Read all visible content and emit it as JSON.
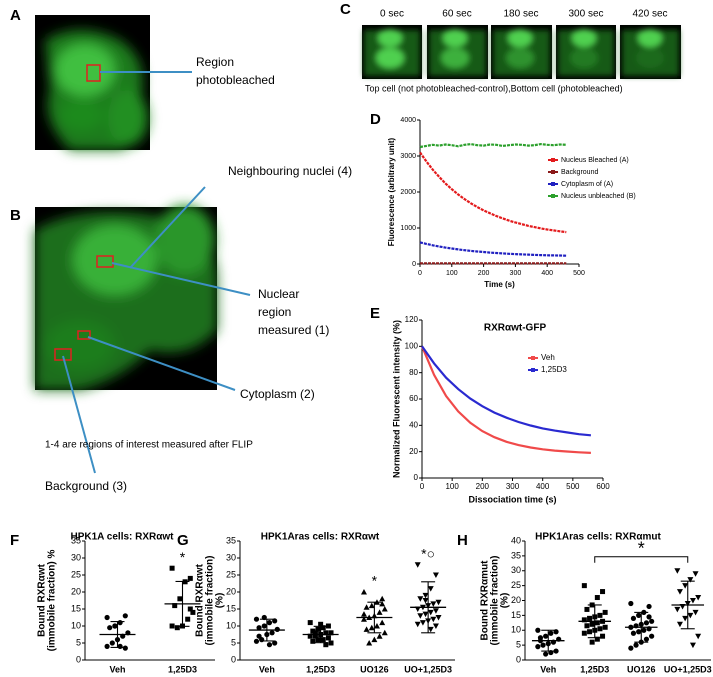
{
  "panels": {
    "A": {
      "label": "A",
      "callout": [
        "Region",
        "photobleached"
      ]
    },
    "B": {
      "label": "B",
      "nuclei": "Neighbouring nuclei (4)",
      "nuclear": [
        "Nuclear",
        "region",
        "measured (1)"
      ],
      "cytoplasm": "Cytoplasm (2)",
      "background": "Background (3)",
      "note": "1-4 are regions of interest measured after FLIP"
    },
    "C": {
      "label": "C",
      "frames": [
        "0 sec",
        "60 sec",
        "180 sec",
        "300 sec",
        "420 sec"
      ],
      "caption": "Top cell (not photobleached-control),Bottom cell (photobleached)"
    }
  },
  "chart_data": [
    {
      "type": "line",
      "panel": "D",
      "xlabel": "Time (s)",
      "ylabel": [
        "Fluorescence (arbitrary unit)"
      ],
      "legend": "center right",
      "x": [
        0,
        20,
        40,
        60,
        80,
        100,
        120,
        140,
        160,
        180,
        200,
        220,
        240,
        260,
        280,
        300,
        320,
        340,
        360,
        380,
        400,
        420,
        440,
        460
      ],
      "series": [
        {
          "name": "Nucleus Bleached (A)",
          "color": "#e31a1c",
          "values": [
            3100,
            2848,
            2622,
            2421,
            2238,
            2078,
            1931,
            1802,
            1686,
            1583,
            1490,
            1408,
            1334,
            1266,
            1206,
            1154,
            1106,
            1062,
            1024,
            990,
            959,
            933,
            909,
            887
          ]
        },
        {
          "name": "Background",
          "color": "#8b1a1a",
          "values": [
            20,
            20,
            20,
            20,
            20,
            20,
            20,
            20,
            20,
            20,
            20,
            20,
            20,
            20,
            20,
            20,
            20,
            20,
            20,
            20,
            20,
            20,
            20,
            20
          ]
        },
        {
          "name": "Cytoplasm of (A)",
          "color": "#2020c0",
          "values": [
            600,
            558,
            520,
            487,
            456,
            430,
            405,
            384,
            364,
            347,
            332,
            318,
            306,
            294,
            284,
            276,
            268,
            260,
            254,
            248,
            243,
            239,
            235,
            231
          ]
        },
        {
          "name": "Nucleus unbleached (B)",
          "color": "#2ca02c",
          "values": [
            3250,
            3280,
            3310,
            3290,
            3320,
            3300,
            3270,
            3310,
            3330,
            3300,
            3290,
            3320,
            3310,
            3280,
            3300,
            3320,
            3310,
            3290,
            3300,
            3330,
            3310,
            3300,
            3320,
            3310
          ]
        }
      ],
      "xlim": [
        0,
        500
      ],
      "xticks": [
        0,
        100,
        200,
        300,
        400,
        500
      ],
      "ylim": [
        0,
        4000
      ],
      "yticks": [
        0,
        1000,
        2000,
        3000,
        4000
      ]
    },
    {
      "type": "line",
      "panel": "E",
      "title": "RXRαwt-GFP",
      "xlabel": "Dissociation time (s)",
      "ylabel": [
        "Normalized Fluorescent intensity (%)"
      ],
      "legend": "upper right",
      "x": [
        0,
        40,
        80,
        120,
        160,
        200,
        240,
        280,
        320,
        360,
        400,
        440,
        480,
        520,
        560
      ],
      "series": [
        {
          "name": "Veh",
          "color": "#f04a4a",
          "values": [
            100,
            78.3,
            62.3,
            50.6,
            41.9,
            35.6,
            31.0,
            27.5,
            25.0,
            23.2,
            21.8,
            20.8,
            20.1,
            19.5,
            19.1
          ]
        },
        {
          "name": "1,25D3",
          "color": "#2a2ad0",
          "values": [
            100,
            87.0,
            76.2,
            67.5,
            60.3,
            54.5,
            49.7,
            45.8,
            42.5,
            39.9,
            37.7,
            36.0,
            34.6,
            33.3,
            32.4
          ]
        }
      ],
      "xlim": [
        0,
        600
      ],
      "xticks": [
        0,
        100,
        200,
        300,
        400,
        500,
        600
      ],
      "ylim": [
        0,
        120
      ],
      "yticks": [
        0,
        20,
        40,
        60,
        80,
        100,
        120
      ]
    },
    {
      "type": "scatter",
      "panel": "F",
      "title": "HPK1A cells: RXRαwt",
      "ylabel": [
        "Bound RXRαwt",
        "(immobile fraction) %"
      ],
      "categories": [
        "Veh",
        "1,25D3"
      ],
      "groups": [
        {
          "marker": "circle",
          "values": [
            12.5,
            13,
            11,
            10,
            9.5,
            8,
            7,
            6,
            5,
            4,
            3.5,
            4,
            10
          ],
          "mean": 7.5,
          "sd": 3.8
        },
        {
          "marker": "square",
          "values": [
            27,
            24,
            23,
            18,
            16,
            14,
            12,
            10,
            9.5,
            10,
            15
          ],
          "mean": 16.5,
          "sd": 6.6,
          "annotation": "*"
        }
      ],
      "ylim": [
        0,
        35
      ],
      "yticks": [
        0,
        5,
        10,
        15,
        20,
        25,
        30,
        35
      ]
    },
    {
      "type": "scatter",
      "panel": "G",
      "title": "HPK1Aras cells: RXRαwt",
      "ylabel": [
        "Bound RXRαwt",
        "(immobile fraction)",
        "(%)"
      ],
      "categories": [
        "Veh",
        "1,25D3",
        "UO126",
        "UO+1,25D3"
      ],
      "groups": [
        {
          "marker": "circle",
          "values": [
            12,
            11.5,
            11,
            10,
            9.5,
            9,
            8,
            7.5,
            6,
            5.5,
            5,
            4.5,
            12.5,
            7
          ],
          "mean": 8.8,
          "sd": 3.2
        },
        {
          "marker": "square",
          "values": [
            11,
            10,
            9.5,
            9,
            8.5,
            8,
            8,
            7.5,
            7,
            7,
            6.5,
            6,
            6,
            5.5,
            5,
            4.5,
            10.5,
            8
          ],
          "mean": 7.5,
          "sd": 2.4
        },
        {
          "marker": "triangle",
          "values": [
            20,
            18,
            17,
            16,
            15.5,
            15,
            14,
            13,
            12.5,
            12,
            11,
            10,
            9.5,
            9,
            8,
            7,
            6,
            5,
            13.5,
            16.5
          ],
          "mean": 12.5,
          "sd": 4.5,
          "annotation": "*"
        },
        {
          "marker": "triangle-down",
          "values": [
            28,
            25,
            21,
            19,
            18,
            17,
            16.5,
            16,
            15.5,
            15,
            14.5,
            14,
            13.5,
            13,
            12.5,
            12,
            11.5,
            11,
            10.5,
            10,
            9,
            17.5
          ],
          "mean": 15.5,
          "sd": 7.5,
          "annotation": "*○"
        }
      ],
      "ylim": [
        0,
        35
      ],
      "yticks": [
        0,
        5,
        10,
        15,
        20,
        25,
        30,
        35
      ]
    },
    {
      "type": "scatter",
      "panel": "H",
      "title": "HPK1Aras cells: RXRαmut",
      "ylabel": [
        "Bound RXRαmut",
        "(immobile fraction)",
        "(%)"
      ],
      "categories": [
        "Veh",
        "1,25D3",
        "UO126",
        "UO+1,25D3"
      ],
      "groups": [
        {
          "marker": "circle",
          "values": [
            10,
            9.5,
            9,
            8,
            7.5,
            7,
            6,
            5.5,
            5,
            4.5,
            3,
            2.5,
            2,
            6.5
          ],
          "mean": 6.5,
          "sd": 3.5
        },
        {
          "marker": "square",
          "values": [
            25,
            23,
            21,
            18.5,
            17,
            16,
            15,
            14.5,
            14,
            13.5,
            13,
            12.5,
            12,
            11.5,
            11,
            10.5,
            10,
            9.5,
            9,
            8,
            7,
            6
          ],
          "mean": 13,
          "sd": 5.5
        },
        {
          "marker": "circle",
          "values": [
            19,
            18,
            16,
            15,
            14,
            13,
            12.5,
            12,
            11.5,
            11,
            10.5,
            10,
            9.5,
            9,
            8,
            7,
            6,
            5,
            4,
            14.5
          ],
          "mean": 11,
          "sd": 5
        },
        {
          "marker": "triangle-down",
          "values": [
            30,
            29,
            27,
            25,
            23,
            21,
            20,
            19,
            18,
            17,
            16,
            15,
            14,
            12,
            8,
            5
          ],
          "mean": 18.5,
          "sd": 8
        }
      ],
      "bracket_label": "*",
      "ylim": [
        0,
        40
      ],
      "yticks": [
        0,
        5,
        10,
        15,
        20,
        25,
        30,
        35,
        40
      ]
    }
  ]
}
